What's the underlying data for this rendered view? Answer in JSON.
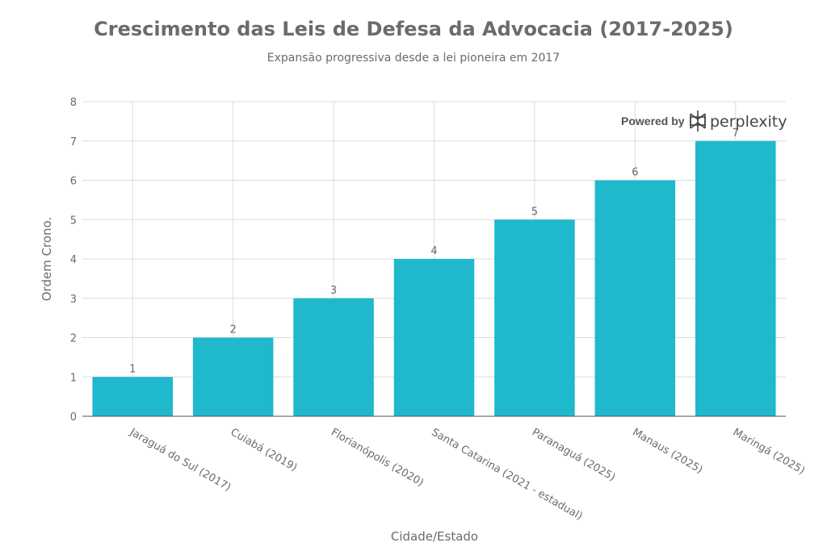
{
  "chart_data": {
    "type": "bar",
    "title": "Crescimento das Leis de Defesa da Advocacia (2017-2025)",
    "subtitle": "Expansão progressiva desde a lei pioneira em 2017",
    "xlabel": "Cidade/Estado",
    "ylabel": "Ordem Crono.",
    "categories": [
      "Jaraguá do Sul (2017)",
      "Cuiabá (2019)",
      "Florianópolis (2020)",
      "Santa Catarina (2021 - estadual)",
      "Paranaguá (2025)",
      "Manaus (2025)",
      "Maringá (2025)"
    ],
    "values": [
      1,
      2,
      3,
      4,
      5,
      6,
      7
    ],
    "data_labels": [
      "1",
      "2",
      "3",
      "4",
      "5",
      "6",
      "7"
    ],
    "ylim": [
      0,
      8
    ],
    "yticks": [
      "0",
      "1",
      "2",
      "3",
      "4",
      "5",
      "6",
      "7",
      "8"
    ],
    "grid": true,
    "bar_color": "#1fb8cd"
  },
  "branding": {
    "powered_by": "Powered by",
    "name": "perplexity",
    "icon": "perplexity-logo-icon"
  }
}
